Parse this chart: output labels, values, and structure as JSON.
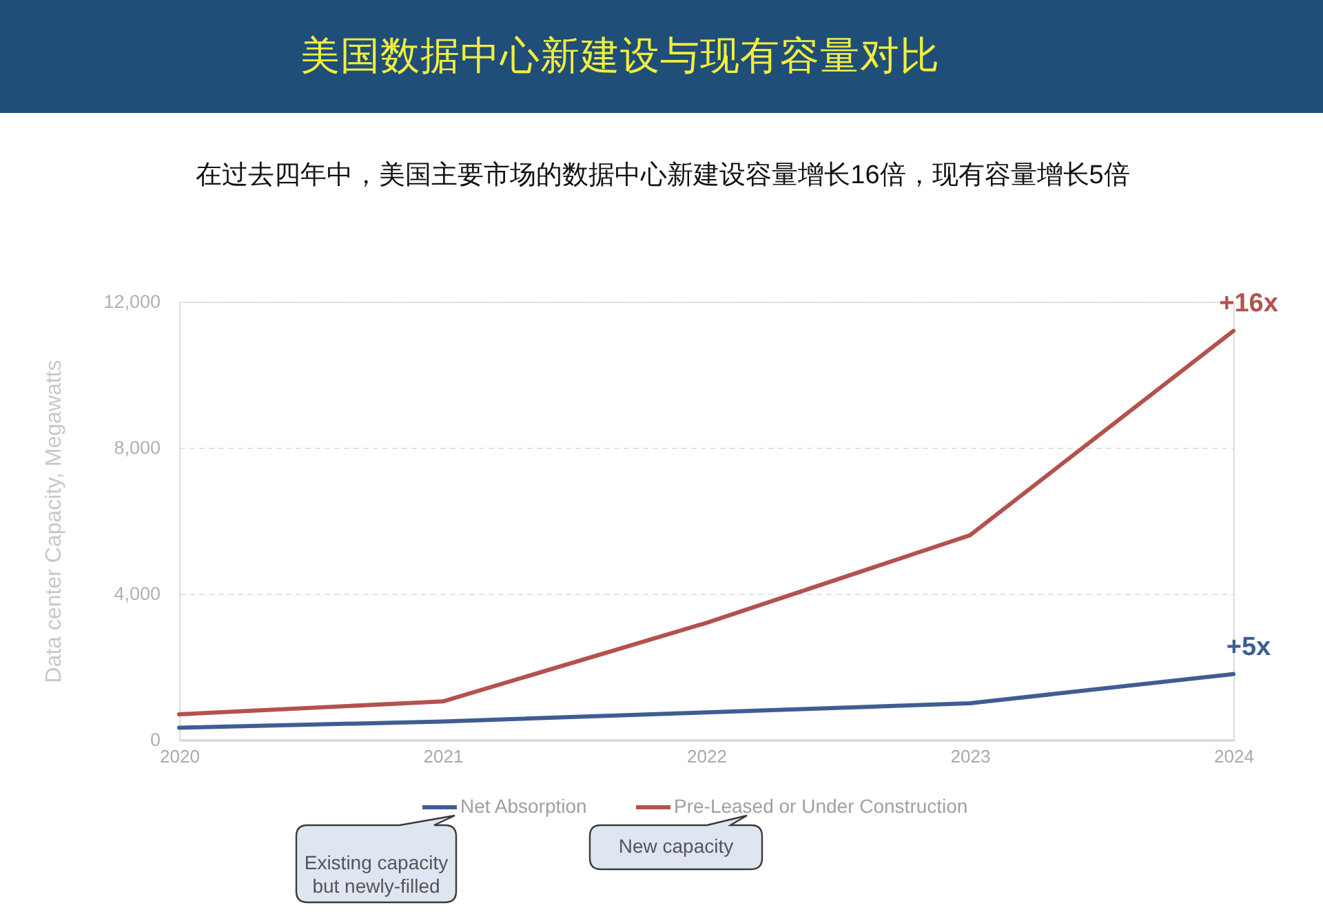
{
  "chart_data": {
    "type": "line",
    "title": "美国数据中心新建设与现有容量对比",
    "subtitle": "在过去四年中，美国主要市场的数据中心新建设容量增长16倍，现有容量增长5倍",
    "ylabel": "Data center Capacity, Megawatts",
    "categories": [
      "2020",
      "2021",
      "2022",
      "2023",
      "2024"
    ],
    "series": [
      {
        "name": "Net Absorption",
        "color": "#3e5d92",
        "values": [
          330,
          500,
          750,
          1000,
          1800
        ]
      },
      {
        "name": "Pre-Leased or Under Construction",
        "color": "#b3524d",
        "values": [
          700,
          1050,
          3200,
          5600,
          11200
        ]
      }
    ],
    "ylim": [
      0,
      12000
    ],
    "yticks": [
      0,
      {
        "value": 4000,
        "label": "4,000"
      },
      {
        "value": 8000,
        "label": "8,000"
      },
      {
        "value": 12000,
        "label": "12,000"
      }
    ],
    "grid": "y",
    "legend": "bottom",
    "line_style": "solid",
    "annotations": [
      {
        "text": "+16x",
        "x": "2024",
        "y": 11200
      },
      {
        "text": "+5x",
        "x": "2024",
        "y": 1800
      },
      "Existing capacity\nbut newly-filled",
      "New capacity"
    ]
  }
}
